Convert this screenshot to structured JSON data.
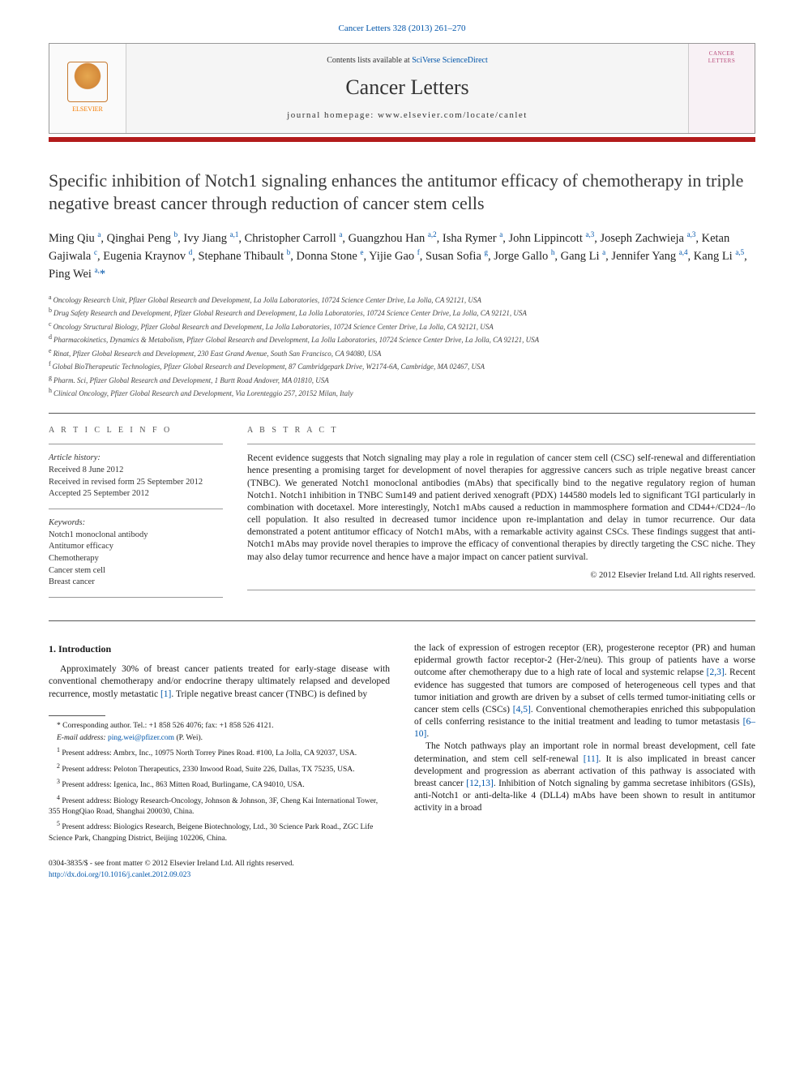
{
  "journal_ref": "Cancer Letters 328 (2013) 261–270",
  "banner": {
    "contents_prefix": "Contents lists available at ",
    "contents_link": "SciVerse ScienceDirect",
    "journal_name": "Cancer Letters",
    "homepage": "journal homepage: www.elsevier.com/locate/canlet",
    "publisher_label": "ELSEVIER",
    "cover_label": "CANCER\nLETTERS"
  },
  "title": "Specific inhibition of Notch1 signaling enhances the antitumor efficacy of chemotherapy in triple negative breast cancer through reduction of cancer stem cells",
  "authors_html": "Ming Qiu <sup>a</sup>, Qinghai Peng <sup>b</sup>, Ivy Jiang <sup>a,1</sup>, Christopher Carroll <sup>a</sup>, Guangzhou Han <sup>a,2</sup>, Isha Rymer <sup>a</sup>, John Lippincott <sup>a,3</sup>, Joseph Zachwieja <sup>a,3</sup>, Ketan Gajiwala <sup>c</sup>, Eugenia Kraynov <sup>d</sup>, Stephane Thibault <sup>b</sup>, Donna Stone <sup>e</sup>, Yijie Gao <sup>f</sup>, Susan Sofia <sup>g</sup>, Jorge Gallo <sup>h</sup>, Gang Li <sup>a</sup>, Jennifer Yang <sup>a,4</sup>, Kang Li <sup>a,5</sup>, Ping Wei <sup>a,</sup><span class='corr'>*</span>",
  "affiliations": [
    {
      "sup": "a",
      "text": "Oncology Research Unit, Pfizer Global Research and Development, La Jolla Laboratories, 10724 Science Center Drive, La Jolla, CA 92121, USA"
    },
    {
      "sup": "b",
      "text": "Drug Safety Research and Development, Pfizer Global Research and Development, La Jolla Laboratories, 10724 Science Center Drive, La Jolla, CA 92121, USA"
    },
    {
      "sup": "c",
      "text": "Oncology Structural Biology, Pfizer Global Research and Development, La Jolla Laboratories, 10724 Science Center Drive, La Jolla, CA 92121, USA"
    },
    {
      "sup": "d",
      "text": "Pharmacokinetics, Dynamics & Metabolism, Pfizer Global Research and Development, La Jolla Laboratories, 10724 Science Center Drive, La Jolla, CA 92121, USA"
    },
    {
      "sup": "e",
      "text": "Rinat, Pfizer Global Research and Development, 230 East Grand Avenue, South San Francisco, CA 94080, USA"
    },
    {
      "sup": "f",
      "text": "Global BioTherapeutic Technologies, Pfizer Global Research and Development, 87 Cambridgepark Drive, W2174-6A, Cambridge, MA 02467, USA"
    },
    {
      "sup": "g",
      "text": "Pharm. Sci, Pfizer Global Research and Development, 1 Burtt Road Andover, MA 01810, USA"
    },
    {
      "sup": "h",
      "text": "Clinical Oncology, Pfizer Global Research and Development, Via Lorenteggio 257, 20152 Milan, Italy"
    }
  ],
  "article_info": {
    "heading": "A R T I C L E   I N F O",
    "history_label": "Article history:",
    "received": "Received 8 June 2012",
    "revised": "Received in revised form 25 September 2012",
    "accepted": "Accepted 25 September 2012",
    "keywords_label": "Keywords:",
    "keywords": [
      "Notch1 monoclonal antibody",
      "Antitumor efficacy",
      "Chemotherapy",
      "Cancer stem cell",
      "Breast cancer"
    ]
  },
  "abstract": {
    "heading": "A B S T R A C T",
    "text": "Recent evidence suggests that Notch signaling may play a role in regulation of cancer stem cell (CSC) self-renewal and differentiation hence presenting a promising target for development of novel therapies for aggressive cancers such as triple negative breast cancer (TNBC). We generated Notch1 monoclonal antibodies (mAbs) that specifically bind to the negative regulatory region of human Notch1. Notch1 inhibition in TNBC Sum149 and patient derived xenograft (PDX) 144580 models led to significant TGI particularly in combination with docetaxel. More interestingly, Notch1 mAbs caused a reduction in mammosphere formation and CD44+/CD24−/lo cell population. It also resulted in decreased tumor incidence upon re-implantation and delay in tumor recurrence. Our data demonstrated a potent antitumor efficacy of Notch1 mAbs, with a remarkable activity against CSCs. These findings suggest that anti-Notch1 mAbs may provide novel therapies to improve the efficacy of conventional therapies by directly targeting the CSC niche. They may also delay tumor recurrence and hence have a major impact on cancer patient survival.",
    "copyright": "© 2012 Elsevier Ireland Ltd. All rights reserved."
  },
  "body": {
    "intro_heading": "1. Introduction",
    "left_p1": "Approximately 30% of breast cancer patients treated for early-stage disease with conventional chemotherapy and/or endocrine therapy ultimately relapsed and developed recurrence, mostly metastatic <span class='ref'>[1]</span>. Triple negative breast cancer (TNBC) is defined by",
    "right_p1": "the lack of expression of estrogen receptor (ER), progesterone receptor (PR) and human epidermal growth factor receptor-2 (Her-2/neu). This group of patients have a worse outcome after chemotherapy due to a high rate of local and systemic relapse <span class='ref'>[2,3]</span>. Recent evidence has suggested that tumors are composed of heterogeneous cell types and that tumor initiation and growth are driven by a subset of cells termed tumor-initiating cells or cancer stem cells (CSCs) <span class='ref'>[4,5]</span>. Conventional chemotherapies enriched this subpopulation of cells conferring resistance to the initial treatment and leading to tumor metastasis <span class='ref'>[6–10]</span>.",
    "right_p2": "The Notch pathways play an important role in normal breast development, cell fate determination, and stem cell self-renewal <span class='ref'>[11]</span>. It is also implicated in breast cancer development and progression as aberrant activation of this pathway is associated with breast cancer <span class='ref'>[12,13]</span>. Inhibition of Notch signaling by gamma secretase inhibitors (GSIs), anti-Notch1 or anti-delta-like 4 (DLL4) mAbs have been shown to result in antitumor activity in a broad"
  },
  "footnotes": {
    "corresponding": "* Corresponding author. Tel.: +1 858 526 4076; fax: +1 858 526 4121.",
    "email_label": "E-mail address: ",
    "email": "ping.wei@pfizer.com",
    "email_suffix": " (P. Wei).",
    "notes": [
      {
        "sup": "1",
        "text": "Present address: Ambrx, Inc., 10975 North Torrey Pines Road. #100, La Jolla, CA 92037, USA."
      },
      {
        "sup": "2",
        "text": "Present address: Peloton Therapeutics, 2330 Inwood Road, Suite 226, Dallas, TX 75235, USA."
      },
      {
        "sup": "3",
        "text": "Present address: Igenica, Inc., 863 Mitten Road, Burlingame, CA 94010, USA."
      },
      {
        "sup": "4",
        "text": "Present address: Biology Research-Oncology, Johnson & Johnson, 3F, Cheng Kai International Tower, 355 HongQiao Road, Shanghai 200030, China."
      },
      {
        "sup": "5",
        "text": "Present address: Biologics Research, Beigene Biotechnology, Ltd., 30 Science Park Road., ZGC Life Science Park, Changping District, Beijing 102206, China."
      }
    ]
  },
  "bottom": {
    "line1": "0304-3835/$ - see front matter © 2012 Elsevier Ireland Ltd. All rights reserved.",
    "doi": "http://dx.doi.org/10.1016/j.canlet.2012.09.023"
  },
  "colors": {
    "accent_red": "#b31b1b",
    "link_blue": "#0055aa",
    "elsevier_orange": "#f57c00",
    "text": "#1a1a1a",
    "background": "#ffffff"
  }
}
